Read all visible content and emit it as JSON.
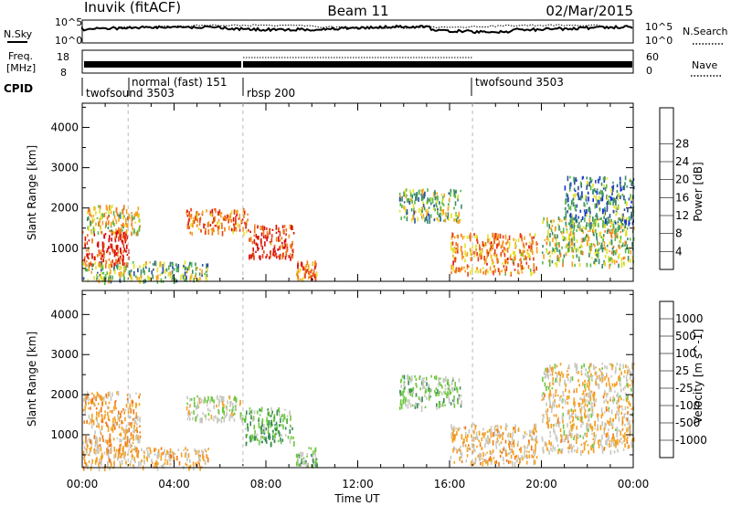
{
  "header": {
    "station": "Inuvik (fitACF)",
    "beam": "Beam 11",
    "date": "02/Mar/2015"
  },
  "nsky_panel": {
    "left_label": "N.Sky",
    "left_ticks": [
      "10^5",
      "10^0"
    ],
    "right_label": "N.Search",
    "right_ticks": [
      "10^5",
      "10^0"
    ]
  },
  "freq_panel": {
    "left_label_line1": "Freq.",
    "left_label_line2": "[MHz]",
    "left_ticks": [
      "18",
      "8"
    ],
    "right_label": "Nave",
    "right_ticks": [
      "60",
      "0"
    ]
  },
  "cpid": {
    "label": "CPID",
    "segments": [
      {
        "name": "twofsound 3503",
        "start_hour": 0.0
      },
      {
        "name": "normal (fast) 151",
        "start_hour": 2.0
      },
      {
        "name": "rbsp 200",
        "start_hour": 7.0
      },
      {
        "name": "twofsound 3503",
        "start_hour": 17.0
      }
    ]
  },
  "x_axis": {
    "label": "Time UT",
    "ticks": [
      "00:00",
      "04:00",
      "08:00",
      "12:00",
      "16:00",
      "20:00",
      "00:00"
    ]
  },
  "y_axis": {
    "label": "Slant Range [km]",
    "ticks": [
      "1000",
      "2000",
      "3000",
      "4000"
    ]
  },
  "colorbars": {
    "power": {
      "label": "Power [dB]",
      "ticks": [
        "4",
        "8",
        "12",
        "16",
        "20",
        "24",
        "28"
      ],
      "colors": [
        "#1432d8",
        "#2a4fa0",
        "#3a8a6a",
        "#5ab84a",
        "#e4e02a",
        "#f5a020",
        "#f07818",
        "#e83a14",
        "#d80a0a"
      ]
    },
    "velocity": {
      "label": "Velocity [m s^-1]",
      "ticks": [
        "1000",
        "500",
        "100",
        "25",
        "-25",
        "-100",
        "-500",
        "-1000"
      ],
      "colors": [
        "#1432d8",
        "#2a6a9a",
        "#3a8a5a",
        "#6cc83c",
        "#c8c8c0",
        "#f5a020",
        "#f07818",
        "#e83a14",
        "#d80a0a"
      ]
    }
  },
  "chart_data": [
    {
      "type": "heatmap",
      "title": "Power",
      "xlabel": "Time UT",
      "ylabel": "Slant Range [km]",
      "xlim": [
        0,
        24
      ],
      "ylim": [
        180,
        4600
      ],
      "colorbar_label": "Power [dB]",
      "colorbar_range": [
        0,
        30
      ],
      "features": [
        {
          "t": [
            0.0,
            2.0
          ],
          "range_km": [
            600,
            1500
          ],
          "value_db": 26
        },
        {
          "t": [
            0.2,
            2.5
          ],
          "range_km": [
            1400,
            2100
          ],
          "value_db": 16
        },
        {
          "t": [
            0.0,
            5.5
          ],
          "range_km": [
            200,
            700
          ],
          "value_db": 12
        },
        {
          "t": [
            4.5,
            7.2
          ],
          "range_km": [
            1400,
            2000
          ],
          "value_db": 22
        },
        {
          "t": [
            7.2,
            9.2
          ],
          "range_km": [
            800,
            1600
          ],
          "value_db": 26
        },
        {
          "t": [
            9.3,
            10.2
          ],
          "range_km": [
            250,
            700
          ],
          "value_db": 22
        },
        {
          "t": [
            13.8,
            16.5
          ],
          "range_km": [
            1700,
            2500
          ],
          "value_db": 12
        },
        {
          "t": [
            16.0,
            19.8
          ],
          "range_km": [
            400,
            1400
          ],
          "value_db": 20
        },
        {
          "t": [
            20.0,
            24.0
          ],
          "range_km": [
            600,
            1800
          ],
          "value_db": 14
        },
        {
          "t": [
            21.0,
            24.0
          ],
          "range_km": [
            1600,
            2800
          ],
          "value_db": 8
        }
      ]
    },
    {
      "type": "heatmap",
      "title": "Velocity",
      "xlabel": "Time UT",
      "ylabel": "Slant Range [km]",
      "xlim": [
        0,
        24
      ],
      "ylim": [
        180,
        4600
      ],
      "colorbar_label": "Velocity [m s^-1]",
      "colorbar_range": [
        -1000,
        1000
      ],
      "features": [
        {
          "t": [
            0.0,
            2.5
          ],
          "range_km": [
            600,
            2100
          ],
          "value_ms": -200
        },
        {
          "t": [
            0.0,
            5.5
          ],
          "range_km": [
            200,
            700
          ],
          "value_ms": -150
        },
        {
          "t": [
            4.5,
            7.0
          ],
          "range_km": [
            1400,
            2000
          ],
          "value_ms": 60
        },
        {
          "t": [
            7.0,
            9.2
          ],
          "range_km": [
            800,
            1700
          ],
          "value_ms": 300
        },
        {
          "t": [
            9.3,
            10.2
          ],
          "range_km": [
            250,
            700
          ],
          "value_ms": 150
        },
        {
          "t": [
            13.8,
            16.5
          ],
          "range_km": [
            1700,
            2500
          ],
          "value_ms": 150
        },
        {
          "t": [
            16.0,
            19.8
          ],
          "range_km": [
            300,
            1300
          ],
          "value_ms": -150
        },
        {
          "t": [
            20.0,
            24.0
          ],
          "range_km": [
            600,
            2800
          ],
          "value_ms": -100
        }
      ]
    }
  ]
}
